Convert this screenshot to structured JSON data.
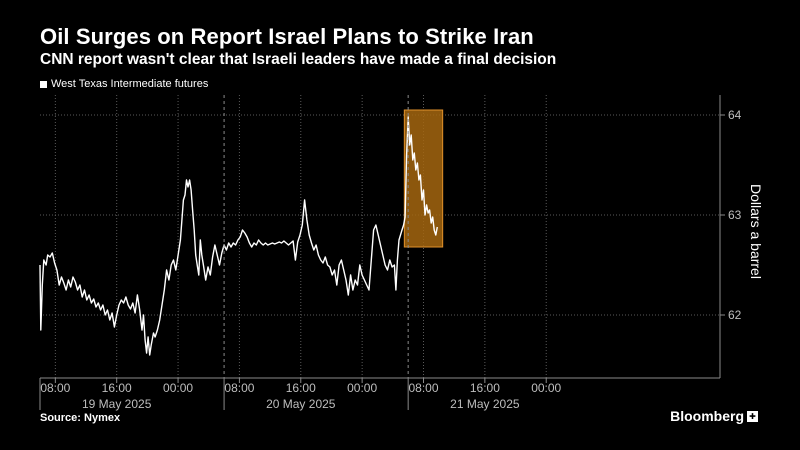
{
  "header": {
    "title": "Oil Surges on Report Israel Plans to Strike Iran",
    "subtitle": "CNN report wasn't clear that Israeli leaders have made a final decision"
  },
  "footer": {
    "source": "Source: Nymex",
    "brand": "Bloomberg"
  },
  "colors": {
    "background": "#000000",
    "line": "#ffffff",
    "highlight_fill": "#a5660f",
    "highlight_stroke": "#e0902a",
    "grid": "#5a5a5a"
  },
  "chart_data": {
    "type": "line",
    "title": "Oil Surges on Report Israel Plans to Strike Iran",
    "subtitle": "CNN report wasn't clear that Israeli leaders have made a final decision",
    "ylabel": "Dollars a barrel",
    "ylim": [
      61.45,
      64.2
    ],
    "y_ticks": [
      62,
      63,
      64
    ],
    "x_range_hours": [
      0,
      83.5
    ],
    "x_ticks": [
      {
        "h": 2,
        "label": "08:00"
      },
      {
        "h": 10,
        "label": "16:00"
      },
      {
        "h": 18,
        "label": "00:00"
      },
      {
        "h": 26,
        "label": "08:00"
      },
      {
        "h": 34,
        "label": "16:00"
      },
      {
        "h": 42,
        "label": "00:00"
      },
      {
        "h": 50,
        "label": "08:00"
      },
      {
        "h": 58,
        "label": "16:00"
      },
      {
        "h": 66,
        "label": "00:00"
      }
    ],
    "date_labels": [
      {
        "h": 10,
        "label": "19 May 2025"
      },
      {
        "h": 34,
        "label": "20 May 2025"
      },
      {
        "h": 58,
        "label": "21 May 2025"
      }
    ],
    "day_separators": [
      24,
      48
    ],
    "grid": true,
    "legend_position": "top-left",
    "highlight": {
      "x_from": 47.5,
      "x_to": 52.5,
      "y_from": 62.68,
      "y_to": 64.05
    },
    "series": [
      {
        "name": "West Texas Intermediate futures",
        "color": "#ffffff",
        "points": [
          [
            0.0,
            62.5
          ],
          [
            0.1,
            61.85
          ],
          [
            0.3,
            62.3
          ],
          [
            0.5,
            62.55
          ],
          [
            0.8,
            62.5
          ],
          [
            1.0,
            62.6
          ],
          [
            1.3,
            62.58
          ],
          [
            1.6,
            62.62
          ],
          [
            1.9,
            62.52
          ],
          [
            2.2,
            62.45
          ],
          [
            2.5,
            62.3
          ],
          [
            2.8,
            62.38
          ],
          [
            3.1,
            62.32
          ],
          [
            3.4,
            62.25
          ],
          [
            3.7,
            62.35
          ],
          [
            4.0,
            62.28
          ],
          [
            4.3,
            62.38
          ],
          [
            4.6,
            62.33
          ],
          [
            4.9,
            62.25
          ],
          [
            5.2,
            62.3
          ],
          [
            5.5,
            62.18
          ],
          [
            5.8,
            62.25
          ],
          [
            6.1,
            62.15
          ],
          [
            6.4,
            62.2
          ],
          [
            6.7,
            62.12
          ],
          [
            7.0,
            62.16
          ],
          [
            7.3,
            62.08
          ],
          [
            7.6,
            62.12
          ],
          [
            7.9,
            62.05
          ],
          [
            8.2,
            62.1
          ],
          [
            8.5,
            62.0
          ],
          [
            8.8,
            62.05
          ],
          [
            9.1,
            61.95
          ],
          [
            9.4,
            62.02
          ],
          [
            9.7,
            61.88
          ],
          [
            10.0,
            62.0
          ],
          [
            10.3,
            62.1
          ],
          [
            10.6,
            62.15
          ],
          [
            10.9,
            62.12
          ],
          [
            11.2,
            62.18
          ],
          [
            11.5,
            62.1
          ],
          [
            11.8,
            62.06
          ],
          [
            12.1,
            62.12
          ],
          [
            12.4,
            62.02
          ],
          [
            12.7,
            62.2
          ],
          [
            13.0,
            62.05
          ],
          [
            13.3,
            61.85
          ],
          [
            13.5,
            62.0
          ],
          [
            13.7,
            61.75
          ],
          [
            13.9,
            61.62
          ],
          [
            14.1,
            61.78
          ],
          [
            14.3,
            61.6
          ],
          [
            14.5,
            61.7
          ],
          [
            14.8,
            61.82
          ],
          [
            15.0,
            61.78
          ],
          [
            15.3,
            61.85
          ],
          [
            15.6,
            61.95
          ],
          [
            15.9,
            62.1
          ],
          [
            16.2,
            62.25
          ],
          [
            16.5,
            62.45
          ],
          [
            16.8,
            62.35
          ],
          [
            17.1,
            62.5
          ],
          [
            17.4,
            62.55
          ],
          [
            17.7,
            62.45
          ],
          [
            18.0,
            62.6
          ],
          [
            18.3,
            62.75
          ],
          [
            18.5,
            62.95
          ],
          [
            18.7,
            63.15
          ],
          [
            18.9,
            63.2
          ],
          [
            19.1,
            63.35
          ],
          [
            19.3,
            63.28
          ],
          [
            19.5,
            63.35
          ],
          [
            19.7,
            63.25
          ],
          [
            19.9,
            63.05
          ],
          [
            20.1,
            62.85
          ],
          [
            20.3,
            62.6
          ],
          [
            20.5,
            62.5
          ],
          [
            20.7,
            62.4
          ],
          [
            20.9,
            62.75
          ],
          [
            21.1,
            62.6
          ],
          [
            21.3,
            62.5
          ],
          [
            21.6,
            62.35
          ],
          [
            21.9,
            62.48
          ],
          [
            22.2,
            62.4
          ],
          [
            22.5,
            62.58
          ],
          [
            22.8,
            62.7
          ],
          [
            23.1,
            62.6
          ],
          [
            23.4,
            62.5
          ],
          [
            23.7,
            62.62
          ],
          [
            24.0,
            62.7
          ],
          [
            24.3,
            62.65
          ],
          [
            24.6,
            62.72
          ],
          [
            24.9,
            62.68
          ],
          [
            25.2,
            62.72
          ],
          [
            25.5,
            62.7
          ],
          [
            25.8,
            62.75
          ],
          [
            26.1,
            62.78
          ],
          [
            26.4,
            62.85
          ],
          [
            26.7,
            62.82
          ],
          [
            27.0,
            62.78
          ],
          [
            27.3,
            62.72
          ],
          [
            27.6,
            62.68
          ],
          [
            27.9,
            62.72
          ],
          [
            28.2,
            62.7
          ],
          [
            28.5,
            62.75
          ],
          [
            28.8,
            62.72
          ],
          [
            29.1,
            62.7
          ],
          [
            29.4,
            62.72
          ],
          [
            29.7,
            62.7
          ],
          [
            30.0,
            62.71
          ],
          [
            30.3,
            62.72
          ],
          [
            30.6,
            62.71
          ],
          [
            30.9,
            62.72
          ],
          [
            31.2,
            62.73
          ],
          [
            31.5,
            62.72
          ],
          [
            31.8,
            62.74
          ],
          [
            32.1,
            62.72
          ],
          [
            32.4,
            62.7
          ],
          [
            32.7,
            62.72
          ],
          [
            33.0,
            62.74
          ],
          [
            33.3,
            62.55
          ],
          [
            33.6,
            62.73
          ],
          [
            33.9,
            62.8
          ],
          [
            34.2,
            62.9
          ],
          [
            34.5,
            63.15
          ],
          [
            34.8,
            62.95
          ],
          [
            35.1,
            62.8
          ],
          [
            35.4,
            62.72
          ],
          [
            35.7,
            62.65
          ],
          [
            36.0,
            62.7
          ],
          [
            36.3,
            62.6
          ],
          [
            36.6,
            62.55
          ],
          [
            36.9,
            62.52
          ],
          [
            37.2,
            62.58
          ],
          [
            37.5,
            62.5
          ],
          [
            37.8,
            62.48
          ],
          [
            38.1,
            62.4
          ],
          [
            38.4,
            62.45
          ],
          [
            38.7,
            62.3
          ],
          [
            39.0,
            62.5
          ],
          [
            39.3,
            62.55
          ],
          [
            39.6,
            62.45
          ],
          [
            39.9,
            62.35
          ],
          [
            40.2,
            62.2
          ],
          [
            40.5,
            62.4
          ],
          [
            40.8,
            62.25
          ],
          [
            41.1,
            62.35
          ],
          [
            41.4,
            62.3
          ],
          [
            41.7,
            62.5
          ],
          [
            42.0,
            62.4
          ],
          [
            42.3,
            62.35
          ],
          [
            42.6,
            62.3
          ],
          [
            42.9,
            62.25
          ],
          [
            43.2,
            62.55
          ],
          [
            43.5,
            62.85
          ],
          [
            43.8,
            62.9
          ],
          [
            44.1,
            62.8
          ],
          [
            44.4,
            62.7
          ],
          [
            44.7,
            62.6
          ],
          [
            45.0,
            62.5
          ],
          [
            45.3,
            62.45
          ],
          [
            45.6,
            62.55
          ],
          [
            45.9,
            62.48
          ],
          [
            46.2,
            62.5
          ],
          [
            46.4,
            62.25
          ],
          [
            46.6,
            62.55
          ],
          [
            46.8,
            62.75
          ],
          [
            47.0,
            62.8
          ],
          [
            47.2,
            62.85
          ],
          [
            47.4,
            62.9
          ],
          [
            47.6,
            62.98
          ],
          [
            47.8,
            63.6
          ],
          [
            48.0,
            63.98
          ],
          [
            48.2,
            63.7
          ],
          [
            48.4,
            63.8
          ],
          [
            48.6,
            63.55
          ],
          [
            48.8,
            63.62
          ],
          [
            49.0,
            63.45
          ],
          [
            49.2,
            63.52
          ],
          [
            49.4,
            63.35
          ],
          [
            49.6,
            63.4
          ],
          [
            49.8,
            63.15
          ],
          [
            50.0,
            63.25
          ],
          [
            50.2,
            63.0
          ],
          [
            50.4,
            63.1
          ],
          [
            50.6,
            63.02
          ],
          [
            50.8,
            63.05
          ],
          [
            51.0,
            62.92
          ],
          [
            51.2,
            62.98
          ],
          [
            51.4,
            62.85
          ],
          [
            51.6,
            62.8
          ],
          [
            51.8,
            62.88
          ]
        ]
      }
    ]
  }
}
